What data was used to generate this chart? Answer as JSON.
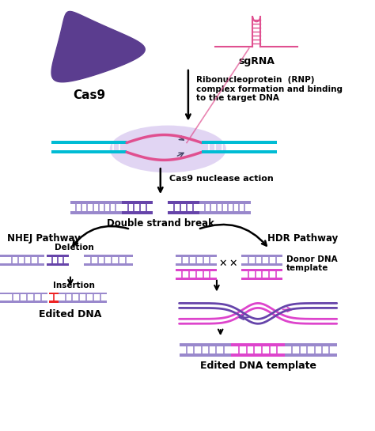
{
  "bg_color": "#ffffff",
  "cas9_color": "#5b3d8f",
  "sgrna_color": "#e05090",
  "dna_cyan": "#00bcd4",
  "dna_purple": "#6644aa",
  "dna_light_purple": "#9988cc",
  "dna_magenta": "#dd44cc",
  "insertion_red": "#ee2222",
  "rnp_blob_color": "#d8c8f0",
  "arrow_color": "#000000",
  "text_color": "#000000",
  "labels": {
    "cas9": "Cas9",
    "sgrna": "sgRNA",
    "rnp_text": "Ribonucleoprotein  (RNP)\ncomplex formation and binding\nto the target DNA",
    "nuclease": "Cas9 nuclease action",
    "dsb": "Double strand break",
    "nhej": "NHEJ Pathway",
    "hdr": "HDR Pathway",
    "deletion": "Deletion",
    "insertion": "Insertion",
    "edited_dna": "Edited DNA",
    "donor": "Donor DNA\ntemplate",
    "edited_template": "Edited DNA template"
  }
}
